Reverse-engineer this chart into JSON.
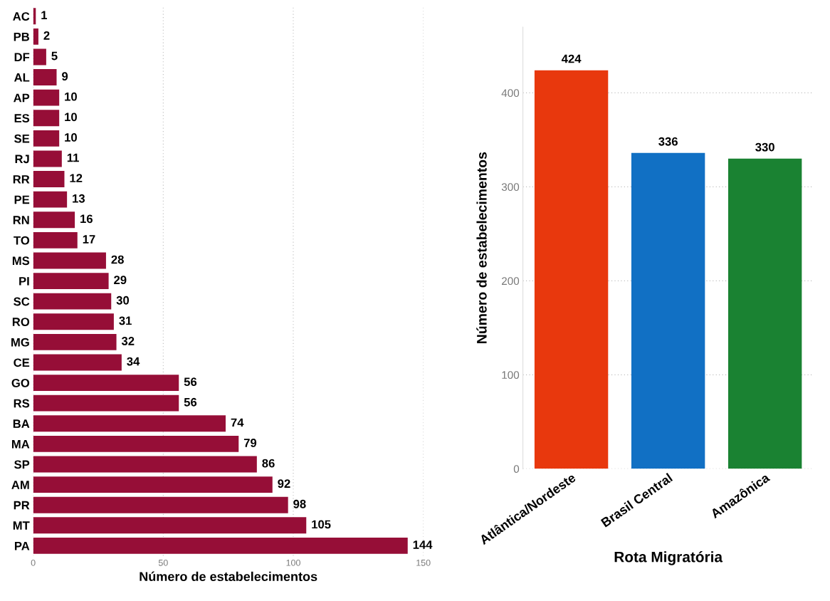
{
  "chart_data": [
    {
      "type": "bar",
      "orientation": "horizontal",
      "xlabel": "Número de estabelecimentos",
      "categories": [
        "AC",
        "PB",
        "DF",
        "AL",
        "AP",
        "ES",
        "SE",
        "RJ",
        "RR",
        "PE",
        "RN",
        "TO",
        "MS",
        "PI",
        "SC",
        "RO",
        "MG",
        "CE",
        "GO",
        "RS",
        "BA",
        "MA",
        "SP",
        "AM",
        "PR",
        "MT",
        "PA"
      ],
      "values": [
        1,
        2,
        5,
        9,
        10,
        10,
        10,
        11,
        12,
        13,
        16,
        17,
        28,
        29,
        30,
        31,
        32,
        34,
        56,
        56,
        74,
        79,
        86,
        92,
        98,
        105,
        144
      ],
      "color": "#960e37",
      "xlim": [
        0,
        150
      ],
      "xticks": [
        0,
        50,
        100,
        150
      ],
      "grid": "x",
      "data_labels": true
    },
    {
      "type": "bar",
      "xlabel": "Rota Migratória",
      "ylabel": "Número de estabelecimentos",
      "categories": [
        "Atlântica/Nordeste",
        "Brasil Central",
        "Amazônica"
      ],
      "values": [
        424,
        336,
        330
      ],
      "colors": [
        "#e8380d",
        "#1170c4",
        "#1a8232"
      ],
      "ylim": [
        0,
        470
      ],
      "yticks": [
        0,
        100,
        200,
        300,
        400
      ],
      "grid": "y",
      "data_labels": true
    }
  ]
}
